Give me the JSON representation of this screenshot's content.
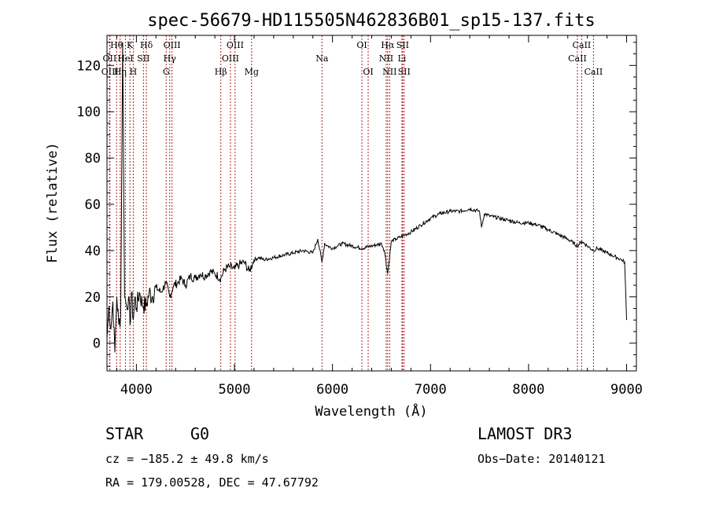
{
  "chart_data": {
    "type": "line",
    "title": "spec-56679-HD115505N462836B01_sp15-137.fits",
    "xlabel": "Wavelength (Å)",
    "ylabel": "Flux (relative)",
    "xlim": [
      3700,
      9100
    ],
    "ylim": [
      -12,
      133
    ],
    "xticks": [
      "4000",
      "5000",
      "6000",
      "7000",
      "8000",
      "9000"
    ],
    "yticks": [
      "0",
      "20",
      "40",
      "60",
      "80",
      "100",
      "120"
    ],
    "xtick_values": [
      4000,
      5000,
      6000,
      7000,
      8000,
      9000
    ],
    "ytick_values": [
      0,
      20,
      40,
      60,
      80,
      100,
      120
    ],
    "series": [
      {
        "name": "flux",
        "x": [
          3700,
          3720,
          3740,
          3760,
          3780,
          3800,
          3820,
          3840,
          3860,
          3880,
          3900,
          3920,
          3935,
          3950,
          3968,
          3985,
          4000,
          4030,
          4060,
          4101,
          4130,
          4160,
          4200,
          4250,
          4300,
          4340,
          4380,
          4420,
          4460,
          4500,
          4550,
          4600,
          4650,
          4700,
          4750,
          4800,
          4861,
          4900,
          4950,
          5000,
          5050,
          5100,
          5150,
          5200,
          5250,
          5300,
          5400,
          5500,
          5600,
          5700,
          5800,
          5850,
          5893,
          5920,
          5950,
          6000,
          6050,
          6100,
          6200,
          6300,
          6400,
          6500,
          6530,
          6563,
          6600,
          6650,
          6700,
          6750,
          6800,
          6900,
          7000,
          7100,
          7200,
          7300,
          7400,
          7500,
          7520,
          7550,
          7600,
          7700,
          7800,
          7900,
          8000,
          8100,
          8200,
          8300,
          8400,
          8498,
          8542,
          8600,
          8662,
          8700,
          8800,
          8850,
          8900,
          8950,
          8980,
          9000
        ],
        "y": [
          2,
          16,
          6,
          18,
          -4,
          20,
          8,
          12,
          130,
          20,
          16,
          20,
          8,
          22,
          10,
          20,
          15,
          22,
          17,
          16,
          22,
          20,
          24,
          22,
          26,
          20,
          25,
          26,
          28,
          25,
          29,
          28,
          30,
          29,
          31,
          30,
          28,
          32,
          33,
          32,
          34,
          35,
          31,
          36,
          37,
          36,
          37,
          38,
          39,
          40,
          39,
          45,
          35,
          43,
          42,
          41,
          42,
          43,
          42,
          41,
          42,
          43,
          40,
          30,
          44,
          45,
          46,
          47,
          48,
          51,
          54,
          56,
          57,
          57,
          58,
          57,
          50,
          56,
          55,
          54,
          53,
          52,
          52,
          51,
          49,
          47,
          45,
          42,
          44,
          42,
          40,
          41,
          39,
          38,
          37,
          36,
          35,
          10
        ]
      }
    ],
    "line_labels": [
      {
        "text": "Hθ",
        "wave": 3798,
        "row": 1
      },
      {
        "text": "OII",
        "wave": 3727,
        "row": 2
      },
      {
        "text": "OIII",
        "wave": 3730,
        "row": 3
      },
      {
        "text": "K",
        "wave": 3934,
        "row": 1
      },
      {
        "text": "HeI",
        "wave": 3889,
        "row": 2
      },
      {
        "text": "Hη",
        "wave": 3835,
        "row": 3
      },
      {
        "text": "SII",
        "wave": 4072,
        "row": 2
      },
      {
        "text": "H",
        "wave": 3968,
        "row": 3
      },
      {
        "text": "Hδ",
        "wave": 4102,
        "row": 1
      },
      {
        "text": "OIII",
        "wave": 4363,
        "row": 1
      },
      {
        "text": "Hγ",
        "wave": 4340,
        "row": 2
      },
      {
        "text": "G",
        "wave": 4304,
        "row": 3
      },
      {
        "text": "OIII",
        "wave": 5007,
        "row": 1
      },
      {
        "text": "OIII",
        "wave": 4959,
        "row": 2
      },
      {
        "text": "Hβ",
        "wave": 4861,
        "row": 3
      },
      {
        "text": "Mg",
        "wave": 5175,
        "row": 3
      },
      {
        "text": "Na",
        "wave": 5893,
        "row": 2
      },
      {
        "text": "OI",
        "wave": 6300,
        "row": 1
      },
      {
        "text": "OI",
        "wave": 6364,
        "row": 3
      },
      {
        "text": "Hα",
        "wave": 6563,
        "row": 1
      },
      {
        "text": "SII",
        "wave": 6716,
        "row": 1
      },
      {
        "text": "NII",
        "wave": 6548,
        "row": 2
      },
      {
        "text": "Li",
        "wave": 6708,
        "row": 2
      },
      {
        "text": "NII",
        "wave": 6583,
        "row": 3
      },
      {
        "text": "SII",
        "wave": 6731,
        "row": 3
      },
      {
        "text": "CaII",
        "wave": 8542,
        "row": 1
      },
      {
        "text": "CaII",
        "wave": 8498,
        "row": 2
      },
      {
        "text": "CaII",
        "wave": 8662,
        "row": 3
      }
    ],
    "line_positions": [
      3727,
      3730,
      3798,
      3835,
      3889,
      3934,
      3968,
      4072,
      4102,
      4304,
      4340,
      4363,
      4861,
      4959,
      5007,
      5175,
      5893,
      6300,
      6364,
      6548,
      6563,
      6583,
      6708,
      6716,
      6731,
      8498,
      8542,
      8662
    ]
  },
  "info": {
    "object_class": "STAR",
    "subclass": "G0",
    "survey": "LAMOST DR3",
    "cz": "cz = −185.2 ± 49.8 km/s",
    "obs_date": "Obs−Date: 20140121",
    "coords": "RA = 179.00528, DEC =  47.67792"
  },
  "colors": {
    "line_marker": "#b22222",
    "spectrum": "#000000",
    "axis": "#000000"
  }
}
